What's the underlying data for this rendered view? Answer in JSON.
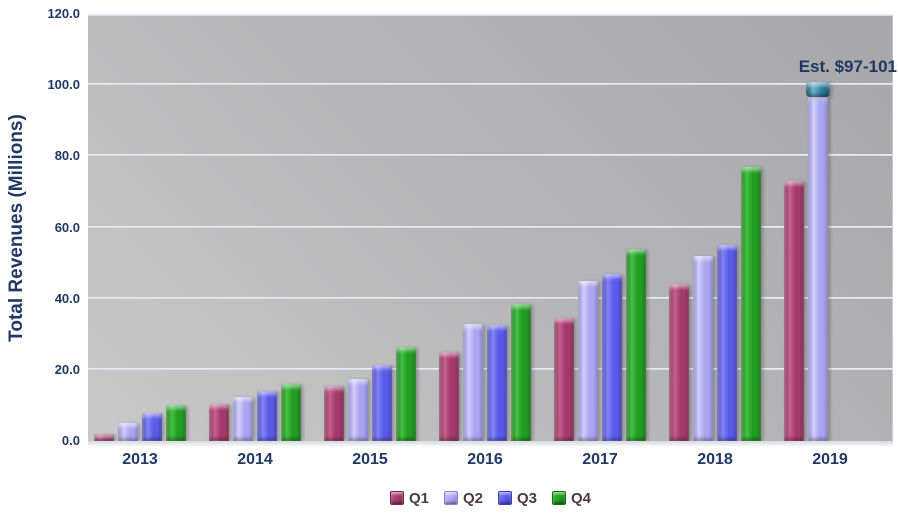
{
  "colors": {
    "axis_text": "#1F3864",
    "gridline": "#D9E5F2",
    "legend_text": "#4D3A47",
    "wall_top_right": "#A7A7A9",
    "wall_bottom_left": "#C9C9C9",
    "series": {
      "Q1": {
        "dark": "#7E2450",
        "main": "#A23A6B",
        "light": "#C7608F"
      },
      "Q2": {
        "dark": "#8680CE",
        "main": "#ABA5F0",
        "light": "#D3CFFB"
      },
      "Q3": {
        "dark": "#3B3BB8",
        "main": "#5A5AE8",
        "light": "#8484F6"
      },
      "Q4": {
        "dark": "#127112",
        "main": "#219D21",
        "light": "#44C344"
      }
    },
    "estimate_cap": {
      "dark": "#1C5A75",
      "main": "#2E7D9D",
      "light": "#6FB3CC"
    }
  },
  "chart_data": {
    "type": "bar",
    "title": "",
    "ylabel": "Total Revenues (Millions)",
    "xlabel": "",
    "ylim": [
      0,
      120
    ],
    "yticks": [
      0,
      20,
      40,
      60,
      80,
      100,
      120
    ],
    "ytick_labels": [
      "0.0",
      "20.0",
      "40.0",
      "60.0",
      "80.0",
      "100.0",
      "120.0"
    ],
    "grid": "horizontal",
    "legend_position": "bottom-center",
    "categories": [
      "2013",
      "2014",
      "2015",
      "2016",
      "2017",
      "2018",
      "2019"
    ],
    "series": [
      {
        "name": "Q1",
        "values": [
          2.0,
          10.5,
          15.5,
          25.0,
          34.5,
          44.0,
          73.0
        ]
      },
      {
        "name": "Q2",
        "values": [
          5.0,
          12.5,
          17.5,
          33.0,
          45.0,
          52.0,
          97.0
        ]
      },
      {
        "name": "Q3",
        "values": [
          8.0,
          14.0,
          21.5,
          32.5,
          47.0,
          55.0,
          null
        ]
      },
      {
        "name": "Q4",
        "values": [
          10.0,
          16.0,
          26.5,
          38.5,
          54.0,
          77.0,
          null
        ]
      }
    ],
    "legend": [
      "Q1",
      "Q2",
      "Q3",
      "Q4"
    ],
    "estimate": {
      "category": "2019",
      "series": "Q2",
      "range_low": 97,
      "range_high": 101,
      "label": "Est. $97-101"
    }
  }
}
